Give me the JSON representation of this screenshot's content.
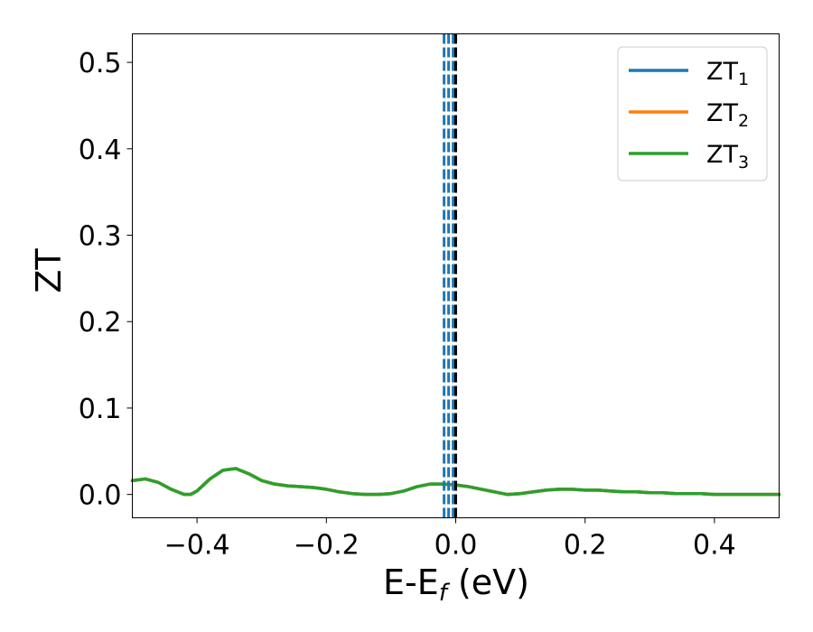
{
  "chart_data": {
    "type": "line",
    "xlabel": {
      "main": "E-E",
      "sub": "f",
      "unit": " (eV)"
    },
    "ylabel": "ZT",
    "xlim": [
      -0.5,
      0.5
    ],
    "ylim": [
      -0.027,
      0.533
    ],
    "xticks": [
      {
        "value": -0.4,
        "label": "−0.4"
      },
      {
        "value": -0.2,
        "label": "−0.2"
      },
      {
        "value": 0.0,
        "label": "0.0"
      },
      {
        "value": 0.2,
        "label": "0.2"
      },
      {
        "value": 0.4,
        "label": "0.4"
      }
    ],
    "yticks": [
      {
        "value": 0.0,
        "label": "0.0"
      },
      {
        "value": 0.1,
        "label": "0.1"
      },
      {
        "value": 0.2,
        "label": "0.2"
      },
      {
        "value": 0.3,
        "label": "0.3"
      },
      {
        "value": 0.4,
        "label": "0.4"
      },
      {
        "value": 0.5,
        "label": "0.5"
      }
    ],
    "grid": false,
    "legend_position": "top-right",
    "x": [
      -0.5,
      -0.48,
      -0.46,
      -0.44,
      -0.42,
      -0.41,
      -0.4,
      -0.38,
      -0.36,
      -0.34,
      -0.32,
      -0.3,
      -0.28,
      -0.26,
      -0.24,
      -0.22,
      -0.2,
      -0.18,
      -0.16,
      -0.14,
      -0.12,
      -0.1,
      -0.08,
      -0.06,
      -0.04,
      -0.02,
      0.0,
      0.02,
      0.04,
      0.06,
      0.08,
      0.1,
      0.12,
      0.14,
      0.16,
      0.18,
      0.2,
      0.22,
      0.24,
      0.26,
      0.28,
      0.3,
      0.32,
      0.34,
      0.36,
      0.38,
      0.4,
      0.42,
      0.44,
      0.46,
      0.48,
      0.5
    ],
    "series": [
      {
        "name_main": "ZT",
        "name_sub": "1",
        "color": "#1f77b4",
        "values": [
          0.016,
          0.018,
          0.014,
          0.006,
          0.0,
          0.0,
          0.004,
          0.018,
          0.028,
          0.03,
          0.024,
          0.016,
          0.012,
          0.01,
          0.009,
          0.008,
          0.006,
          0.003,
          0.001,
          0.0,
          0.0,
          0.001,
          0.004,
          0.009,
          0.012,
          0.012,
          0.011,
          0.009,
          0.006,
          0.003,
          0.0,
          0.001,
          0.003,
          0.005,
          0.006,
          0.006,
          0.005,
          0.005,
          0.004,
          0.003,
          0.003,
          0.002,
          0.002,
          0.001,
          0.001,
          0.001,
          0.0,
          0.0,
          0.0,
          0.0,
          0.0,
          0.0
        ]
      },
      {
        "name_main": "ZT",
        "name_sub": "2",
        "color": "#ff7f0e",
        "values": [
          0.016,
          0.018,
          0.014,
          0.006,
          0.0,
          0.0,
          0.004,
          0.018,
          0.028,
          0.03,
          0.024,
          0.016,
          0.012,
          0.01,
          0.009,
          0.008,
          0.006,
          0.003,
          0.001,
          0.0,
          0.0,
          0.001,
          0.004,
          0.009,
          0.012,
          0.012,
          0.011,
          0.009,
          0.006,
          0.003,
          0.0,
          0.001,
          0.003,
          0.005,
          0.006,
          0.006,
          0.005,
          0.005,
          0.004,
          0.003,
          0.003,
          0.002,
          0.002,
          0.001,
          0.001,
          0.001,
          0.0,
          0.0,
          0.0,
          0.0,
          0.0,
          0.0
        ]
      },
      {
        "name_main": "ZT",
        "name_sub": "3",
        "color": "#2ca02c",
        "values": [
          0.016,
          0.018,
          0.014,
          0.006,
          0.0,
          0.0,
          0.004,
          0.018,
          0.028,
          0.03,
          0.024,
          0.016,
          0.012,
          0.01,
          0.009,
          0.008,
          0.006,
          0.003,
          0.001,
          0.0,
          0.0,
          0.001,
          0.004,
          0.009,
          0.012,
          0.012,
          0.011,
          0.009,
          0.006,
          0.003,
          0.0,
          0.001,
          0.003,
          0.005,
          0.006,
          0.006,
          0.005,
          0.005,
          0.004,
          0.003,
          0.003,
          0.002,
          0.002,
          0.001,
          0.001,
          0.001,
          0.0,
          0.0,
          0.0,
          0.0,
          0.0,
          0.0
        ]
      }
    ],
    "vlines": [
      {
        "x": -0.018,
        "color": "#1f77b4",
        "style": "dashed"
      },
      {
        "x": -0.011,
        "color": "#1f77b4",
        "style": "dashed"
      },
      {
        "x": -0.004,
        "color": "#1f77b4",
        "style": "dashed"
      },
      {
        "x": 0.0,
        "color": "#000000",
        "style": "dashed"
      }
    ]
  }
}
